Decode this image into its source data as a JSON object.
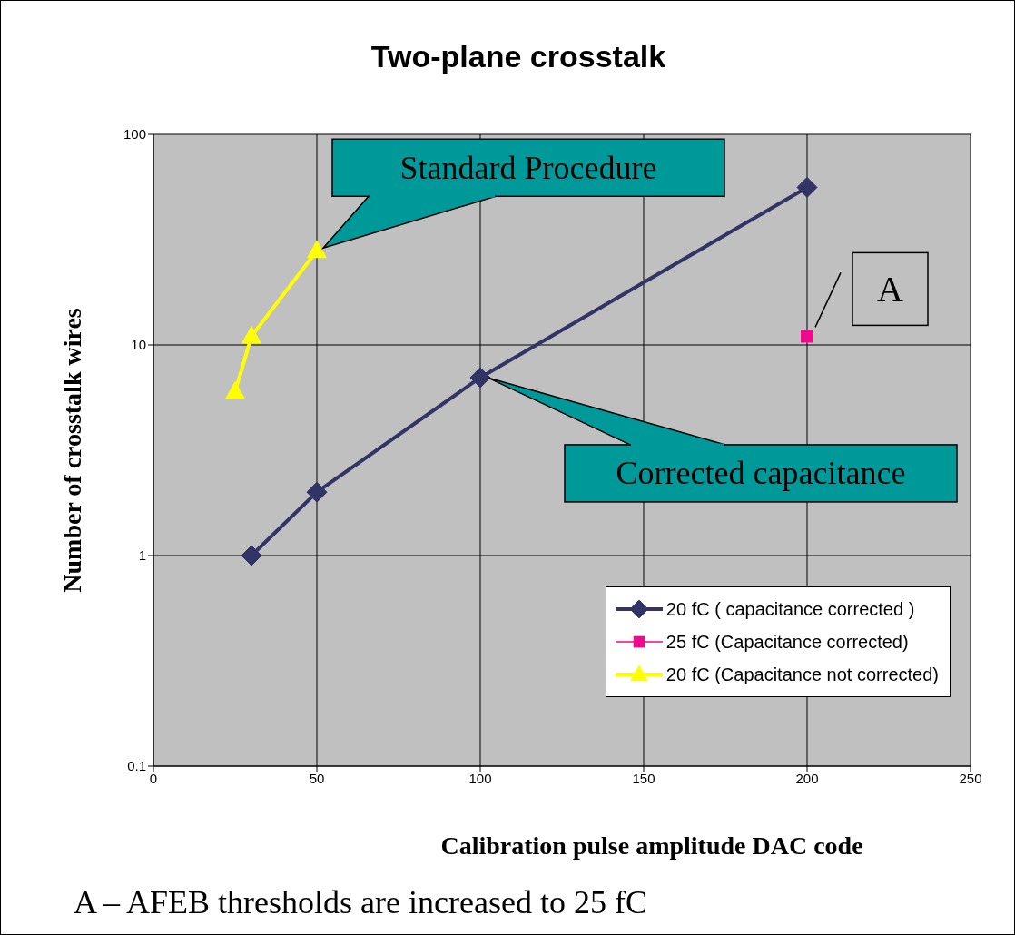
{
  "chart_data": {
    "type": "line",
    "title": "Two-plane crosstalk",
    "xlabel": "Calibration pulse amplitude DAC code",
    "ylabel": "Number of crosstalk wires",
    "log": "y",
    "grid": true,
    "legend": "bottom right",
    "line_style": "solid",
    "xlim": [
      0,
      250
    ],
    "xticks": [
      0,
      50,
      100,
      150,
      200,
      250
    ],
    "ylim": [
      0.1,
      100
    ],
    "yticks": [
      0.1,
      1,
      10,
      100
    ],
    "series": [
      {
        "name": "20 fC ( capacitance corrected )",
        "color": "#333366",
        "marker": "diamond",
        "x": [
          30,
          50,
          100,
          200
        ],
        "values": [
          1,
          2,
          7,
          56
        ]
      },
      {
        "name": "25 fC (Capacitance corrected)",
        "color": "#ee0a8c",
        "marker": "square",
        "x": [
          200
        ],
        "values": [
          11
        ]
      },
      {
        "name": "20 fC (Capacitance not corrected)",
        "color": "#ffff00",
        "marker": "triangle",
        "x": [
          25,
          30,
          50
        ],
        "values": [
          6,
          11,
          28
        ]
      }
    ],
    "annotations": [
      {
        "text": "Standard Procedure",
        "x": 50,
        "y": 28
      },
      {
        "text": "Corrected capacitance",
        "x": 100,
        "y": 7
      },
      {
        "text": "A",
        "x": 200,
        "y": 11
      },
      "A – AFEB thresholds are increased to 25 fC"
    ]
  }
}
